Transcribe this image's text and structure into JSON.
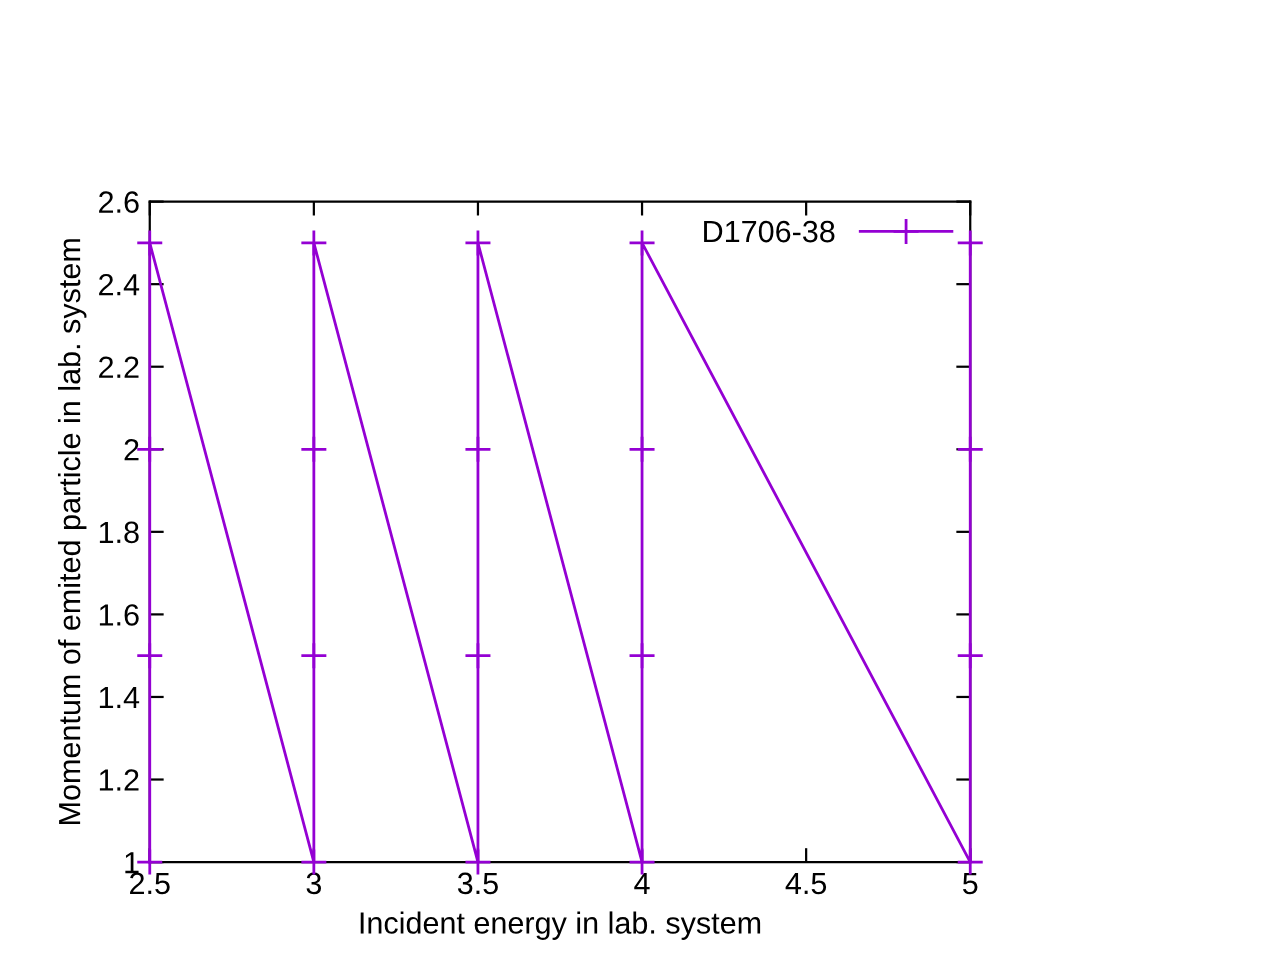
{
  "chart_data": {
    "type": "line",
    "xlabel": "Incident energy in lab. system",
    "ylabel": "Momentum of emited particle in lab. system",
    "x": [
      2.5,
      2.5,
      2.5,
      2.5,
      3,
      3,
      3,
      3,
      3.5,
      3.5,
      3.5,
      3.5,
      4,
      4,
      4,
      4,
      5,
      5,
      5,
      5
    ],
    "series": [
      {
        "name": "D1706-38",
        "color": "#9400d3",
        "values": [
          1,
          1.5,
          2,
          2.5,
          1,
          1.5,
          2,
          2.5,
          1,
          1.5,
          2,
          2.5,
          1,
          1.5,
          2,
          2.5,
          1,
          1.5,
          2,
          2.5
        ]
      }
    ],
    "xlim": [
      2.5,
      5
    ],
    "xticks": [
      2.5,
      3,
      3.5,
      4,
      4.5,
      5
    ],
    "ylim": [
      1,
      2.6
    ],
    "yticks": [
      1,
      1.2,
      1.4,
      1.6,
      1.8,
      2,
      2.2,
      2.4,
      2.6
    ],
    "marker": "cross",
    "line_style": "solid",
    "grid": false,
    "legend": "top right"
  }
}
